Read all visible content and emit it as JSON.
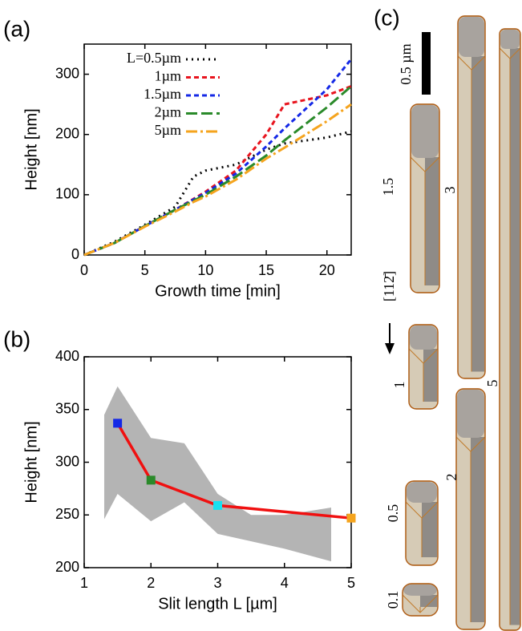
{
  "chart_data": [
    {
      "type": "line",
      "label": "(a)",
      "xlabel": "Growth time [min]",
      "ylabel": "Height [nm]",
      "xlim": [
        0,
        22
      ],
      "xticks": [
        0,
        5,
        10,
        15,
        20
      ],
      "ylim": [
        0,
        350
      ],
      "yticks": [
        0,
        100,
        200,
        300
      ],
      "legend": "upper left",
      "x": [
        0,
        2.5,
        5,
        7.5,
        9,
        10,
        12.5,
        15,
        16.5,
        20,
        22
      ],
      "series": [
        {
          "name": "L=0.5µm",
          "color": "#000000",
          "dash": "dotted",
          "values": [
            0,
            22,
            50,
            80,
            130,
            140,
            150,
            175,
            185,
            195,
            205
          ]
        },
        {
          "name": "1µm",
          "color": "#e8141e",
          "dash": "dashed",
          "values": [
            0,
            20,
            48,
            75,
            93,
            105,
            140,
            200,
            250,
            265,
            280
          ]
        },
        {
          "name": "1.5µm",
          "color": "#1428e6",
          "dash": "dashed",
          "values": [
            0,
            20,
            48,
            75,
            92,
            103,
            135,
            180,
            210,
            275,
            325
          ]
        },
        {
          "name": "2µm",
          "color": "#2a8a2a",
          "dash": "long-dash",
          "values": [
            0,
            20,
            48,
            75,
            90,
            100,
            130,
            165,
            190,
            245,
            280
          ]
        },
        {
          "name": "5µm",
          "color": "#f5a41e",
          "dash": "dash-dot",
          "values": [
            0,
            20,
            47,
            72,
            88,
            97,
            125,
            160,
            178,
            222,
            250
          ]
        }
      ]
    },
    {
      "type": "line",
      "label": "(b)",
      "xlabel": "Slit length L [µm]",
      "ylabel": "Height [nm]",
      "xlim": [
        1,
        5
      ],
      "xticks": [
        1,
        2,
        3,
        4,
        5
      ],
      "ylim": [
        200,
        400
      ],
      "yticks": [
        200,
        250,
        300,
        350,
        400
      ],
      "x": [
        1.5,
        2,
        3,
        5
      ],
      "values": [
        337,
        283,
        259,
        247
      ],
      "color": "#f01010",
      "marker_colors": [
        "#1428e6",
        "#2a8a2a",
        "#18e0f0",
        "#f5a41e"
      ],
      "band": {
        "color": "#b4b4b4",
        "x": [
          1.3,
          1.5,
          2,
          2.5,
          3,
          3.5,
          4,
          4.7
        ],
        "upper": [
          345,
          372,
          323,
          318,
          270,
          250,
          250,
          257
        ],
        "lower": [
          246,
          270,
          244,
          262,
          232,
          225,
          218,
          206
        ]
      }
    }
  ],
  "panel_c": {
    "label": "(c)",
    "scale_bar": "0.5 µm",
    "direction": "[112̄]",
    "lengths": [
      "0.1",
      "0.5",
      "1",
      "1.5",
      "2",
      "3",
      "5"
    ]
  }
}
